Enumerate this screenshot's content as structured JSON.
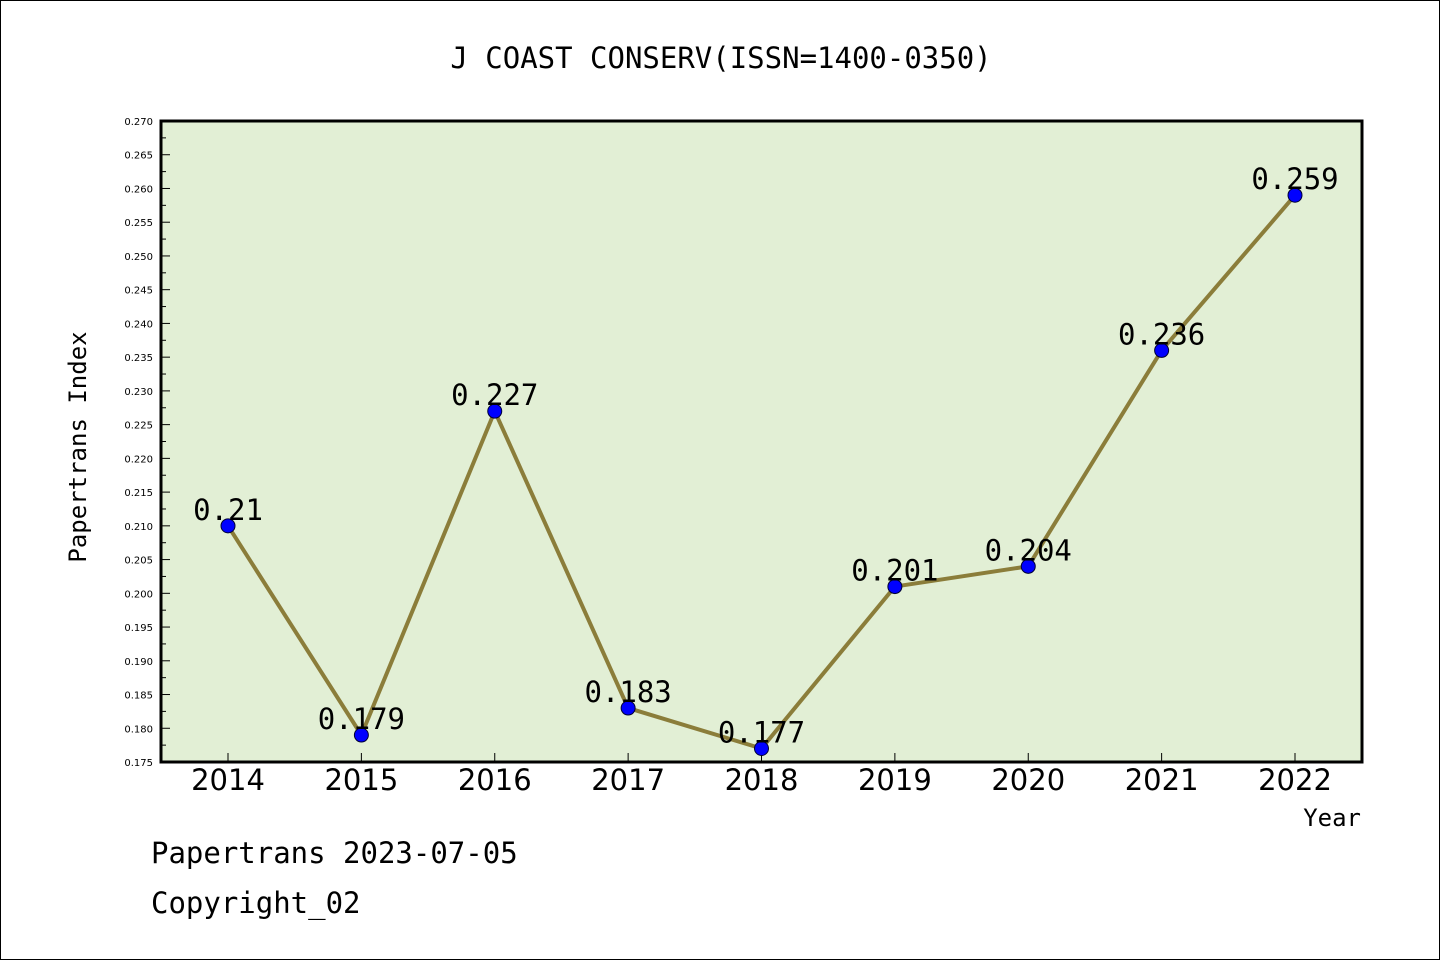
{
  "chart_data": {
    "type": "line",
    "title": "J COAST CONSERV(ISSN=1400-0350)",
    "xlabel": "Year",
    "ylabel": "Papertrans Index",
    "categories": [
      "2014",
      "2015",
      "2016",
      "2017",
      "2018",
      "2019",
      "2020",
      "2021",
      "2022"
    ],
    "values": [
      0.21,
      0.179,
      0.227,
      0.183,
      0.177,
      0.201,
      0.204,
      0.236,
      0.259
    ],
    "data_labels": [
      "0.21",
      "0.179",
      "0.227",
      "0.183",
      "0.177",
      "0.201",
      "0.204",
      "0.236",
      "0.259"
    ],
    "ylim": [
      0.175,
      0.27
    ],
    "yticks": [
      "0.175",
      "0.180",
      "0.185",
      "0.190",
      "0.195",
      "0.200",
      "0.205",
      "0.210",
      "0.215",
      "0.220",
      "0.225",
      "0.230",
      "0.235",
      "0.240",
      "0.245",
      "0.250",
      "0.255",
      "0.260",
      "0.265",
      "0.270"
    ],
    "grid": false,
    "legend": "none",
    "colors": {
      "plot_background": "#e2efd5",
      "line": "#8b7d3a",
      "marker": "#0000ff"
    }
  },
  "footer": {
    "date_line": "Papertrans 2023-07-05",
    "copyright": "Copyright_02"
  }
}
